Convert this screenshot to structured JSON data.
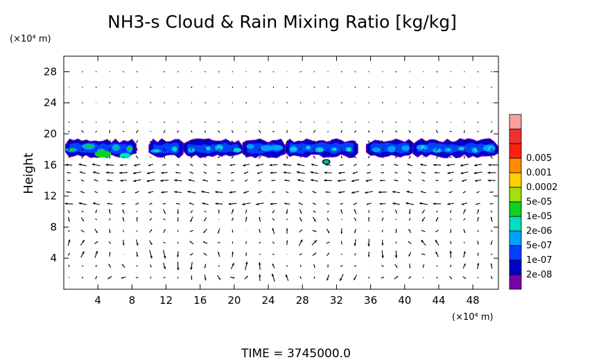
{
  "chart_data": {
    "type": "heatmap",
    "title": "NH3-s Cloud & Rain Mixing Ratio [kg/kg]",
    "ylabel": "Height",
    "y_unit": "(×10⁴ m)",
    "x_unit": "(×10⁴ m)",
    "footer": "TIME  =  3745000.0",
    "xlim": [
      0,
      51
    ],
    "ylim": [
      0,
      30
    ],
    "x_ticks": [
      "4",
      "8",
      "12",
      "16",
      "20",
      "24",
      "28",
      "32",
      "36",
      "40",
      "44",
      "48"
    ],
    "y_ticks": [
      "4",
      "8",
      "12",
      "16",
      "20",
      "24",
      "28"
    ],
    "x_tick_values": [
      4,
      8,
      12,
      16,
      20,
      24,
      28,
      32,
      36,
      40,
      44,
      48
    ],
    "y_tick_values": [
      4,
      8,
      12,
      16,
      20,
      24,
      28
    ],
    "grid": false,
    "colorbar": {
      "placement": "right",
      "levels": [
        "2e-08",
        "1e-07",
        "5e-07",
        "2e-06",
        "1e-05",
        "5e-05",
        "0.0002",
        "0.001",
        "0.005"
      ],
      "colors": [
        "#7a00a8",
        "#0000c8",
        "#0040ff",
        "#00a0ff",
        "#00e0c0",
        "#10d020",
        "#a0e010",
        "#ffd000",
        "#ff8c00",
        "#ff2010",
        "#f03030",
        "#f8a0a0"
      ]
    },
    "cloud_layer": {
      "y_bottom": 16.9,
      "y_top": 19.4,
      "clusters": [
        {
          "x": [
            0.2,
            8.5
          ],
          "core": "#10d020"
        },
        {
          "x": [
            10.0,
            14.0
          ],
          "core": "#00e0c0"
        },
        {
          "x": [
            14.0,
            21.0
          ],
          "core": "#00e0c0"
        },
        {
          "x": [
            21.0,
            26.0
          ],
          "core": "#00a0ff"
        },
        {
          "x": [
            26.0,
            34.5
          ],
          "core": "#00e0c0"
        },
        {
          "x": [
            35.5,
            41.0
          ],
          "core": "#00a0ff"
        },
        {
          "x": [
            41.0,
            51.0
          ],
          "core": "#00e0c0"
        }
      ],
      "patch": {
        "x": 30.8,
        "y": 16.4,
        "color": "#10d020"
      }
    },
    "wind_vectors": {
      "description": "velocity arrows sampled on a regular grid",
      "dx": 1.6,
      "y_levels": [
        1.5,
        3,
        4.5,
        6,
        7.5,
        9,
        10,
        11,
        12.5,
        14,
        15,
        16,
        17,
        18,
        19,
        20.3,
        21.5,
        24,
        26,
        28
      ],
      "circulation_cells": [
        {
          "center_x": 18,
          "center_y": 3.5,
          "sense": 1
        },
        {
          "center_x": 30,
          "center_y": 3.5,
          "sense": -1
        },
        {
          "center_x": 41,
          "center_y": 3.5,
          "sense": 1
        },
        {
          "center_x": 6,
          "center_y": 3.5,
          "sense": -1
        }
      ]
    }
  }
}
